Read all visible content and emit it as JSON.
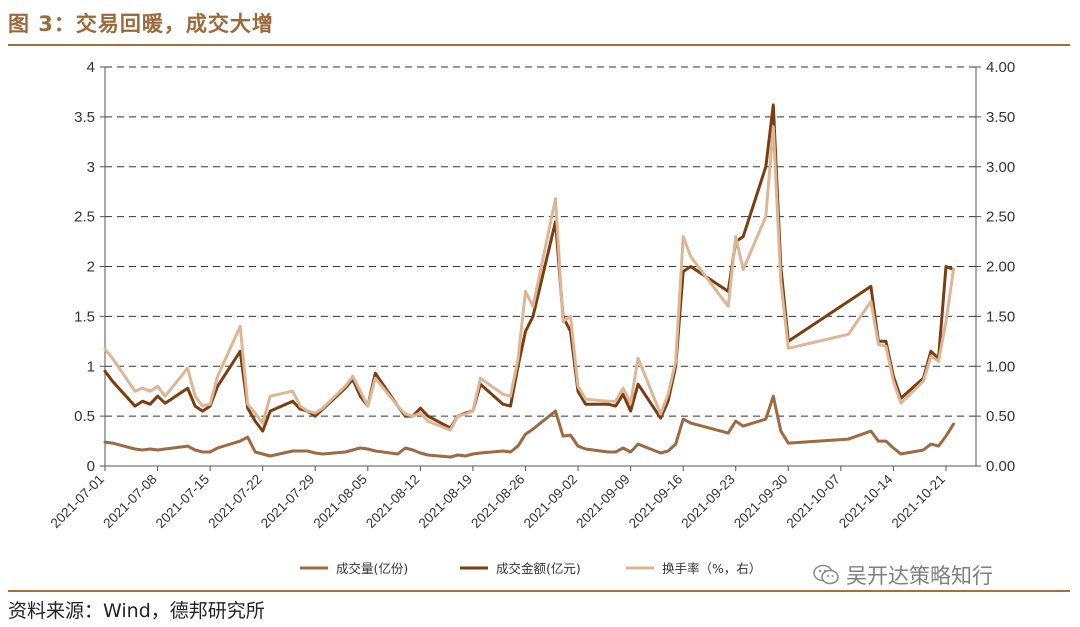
{
  "title": "图 3：交易回暖，成交大增",
  "source": "资料来源：Wind，德邦研究所",
  "watermark": "吴开达策略知行",
  "colors": {
    "frame": "#a0703f",
    "title": "#9a6a3c"
  },
  "chart_data": {
    "type": "line",
    "yleft": {
      "min": 0,
      "max": 4,
      "ticks": [
        "0",
        "0.5",
        "1",
        "1.5",
        "2",
        "2.5",
        "3",
        "3.5",
        "4"
      ]
    },
    "yright": {
      "min": 0,
      "max": 4,
      "ticks": [
        "0.00",
        "0.50",
        "1.00",
        "1.50",
        "2.00",
        "2.50",
        "3.00",
        "3.50",
        "4.00"
      ]
    },
    "grid": "horizontal dashed",
    "legend_position": "bottom",
    "x_tick_labels": [
      "2021-07-01",
      "2021-07-08",
      "2021-07-15",
      "2021-07-22",
      "2021-07-29",
      "2021-08-05",
      "2021-08-12",
      "2021-08-19",
      "2021-08-26",
      "2021-09-02",
      "2021-09-09",
      "2021-09-16",
      "2021-09-23",
      "2021-09-30",
      "2021-10-07",
      "2021-10-14",
      "2021-10-21"
    ],
    "x_range": [
      "2021-07-01",
      "2021-10-25"
    ],
    "series": [
      {
        "name": "成交量(亿份)",
        "color": "#9c6b43",
        "axis": "left",
        "points": [
          [
            "2021-07-01",
            0.24
          ],
          [
            "2021-07-02",
            0.23
          ],
          [
            "2021-07-05",
            0.17
          ],
          [
            "2021-07-06",
            0.16
          ],
          [
            "2021-07-07",
            0.17
          ],
          [
            "2021-07-08",
            0.16
          ],
          [
            "2021-07-09",
            0.17
          ],
          [
            "2021-07-12",
            0.2
          ],
          [
            "2021-07-13",
            0.16
          ],
          [
            "2021-07-14",
            0.14
          ],
          [
            "2021-07-15",
            0.14
          ],
          [
            "2021-07-16",
            0.18
          ],
          [
            "2021-07-19",
            0.25
          ],
          [
            "2021-07-20",
            0.29
          ],
          [
            "2021-07-21",
            0.14
          ],
          [
            "2021-07-22",
            0.12
          ],
          [
            "2021-07-23",
            0.1
          ],
          [
            "2021-07-26",
            0.15
          ],
          [
            "2021-07-27",
            0.15
          ],
          [
            "2021-07-28",
            0.15
          ],
          [
            "2021-07-29",
            0.13
          ],
          [
            "2021-07-30",
            0.12
          ],
          [
            "2021-08-02",
            0.14
          ],
          [
            "2021-08-03",
            0.16
          ],
          [
            "2021-08-04",
            0.18
          ],
          [
            "2021-08-05",
            0.17
          ],
          [
            "2021-08-06",
            0.15
          ],
          [
            "2021-08-09",
            0.12
          ],
          [
            "2021-08-10",
            0.18
          ],
          [
            "2021-08-11",
            0.16
          ],
          [
            "2021-08-12",
            0.13
          ],
          [
            "2021-08-13",
            0.11
          ],
          [
            "2021-08-16",
            0.09
          ],
          [
            "2021-08-17",
            0.11
          ],
          [
            "2021-08-18",
            0.1
          ],
          [
            "2021-08-19",
            0.12
          ],
          [
            "2021-08-20",
            0.13
          ],
          [
            "2021-08-23",
            0.15
          ],
          [
            "2021-08-24",
            0.14
          ],
          [
            "2021-08-25",
            0.2
          ],
          [
            "2021-08-26",
            0.32
          ],
          [
            "2021-08-27",
            0.37
          ],
          [
            "2021-08-30",
            0.55
          ],
          [
            "2021-08-31",
            0.3
          ],
          [
            "2021-09-01",
            0.31
          ],
          [
            "2021-09-02",
            0.2
          ],
          [
            "2021-09-03",
            0.17
          ],
          [
            "2021-09-06",
            0.14
          ],
          [
            "2021-09-07",
            0.14
          ],
          [
            "2021-09-08",
            0.18
          ],
          [
            "2021-09-09",
            0.14
          ],
          [
            "2021-09-10",
            0.22
          ],
          [
            "2021-09-13",
            0.13
          ],
          [
            "2021-09-14",
            0.15
          ],
          [
            "2021-09-15",
            0.22
          ],
          [
            "2021-09-16",
            0.47
          ],
          [
            "2021-09-17",
            0.43
          ],
          [
            "2021-09-22",
            0.33
          ],
          [
            "2021-09-23",
            0.45
          ],
          [
            "2021-09-24",
            0.4
          ],
          [
            "2021-09-27",
            0.47
          ],
          [
            "2021-09-28",
            0.7
          ],
          [
            "2021-09-29",
            0.35
          ],
          [
            "2021-09-30",
            0.23
          ],
          [
            "2021-10-08",
            0.27
          ],
          [
            "2021-10-11",
            0.35
          ],
          [
            "2021-10-12",
            0.25
          ],
          [
            "2021-10-13",
            0.25
          ],
          [
            "2021-10-14",
            0.18
          ],
          [
            "2021-10-15",
            0.12
          ],
          [
            "2021-10-18",
            0.16
          ],
          [
            "2021-10-19",
            0.22
          ],
          [
            "2021-10-20",
            0.2
          ],
          [
            "2021-10-21",
            0.3
          ],
          [
            "2021-10-22",
            0.42
          ]
        ]
      },
      {
        "name": "成交金额(亿元)",
        "color": "#7a3e12",
        "axis": "left",
        "points": [
          [
            "2021-07-01",
            0.95
          ],
          [
            "2021-07-02",
            0.85
          ],
          [
            "2021-07-05",
            0.6
          ],
          [
            "2021-07-06",
            0.65
          ],
          [
            "2021-07-07",
            0.62
          ],
          [
            "2021-07-08",
            0.7
          ],
          [
            "2021-07-09",
            0.63
          ],
          [
            "2021-07-12",
            0.78
          ],
          [
            "2021-07-13",
            0.6
          ],
          [
            "2021-07-14",
            0.55
          ],
          [
            "2021-07-15",
            0.6
          ],
          [
            "2021-07-16",
            0.8
          ],
          [
            "2021-07-19",
            1.15
          ],
          [
            "2021-07-20",
            0.58
          ],
          [
            "2021-07-21",
            0.45
          ],
          [
            "2021-07-22",
            0.35
          ],
          [
            "2021-07-23",
            0.55
          ],
          [
            "2021-07-26",
            0.65
          ],
          [
            "2021-07-27",
            0.57
          ],
          [
            "2021-07-28",
            0.55
          ],
          [
            "2021-07-29",
            0.5
          ],
          [
            "2021-07-30",
            0.57
          ],
          [
            "2021-08-02",
            0.78
          ],
          [
            "2021-08-03",
            0.87
          ],
          [
            "2021-08-04",
            0.7
          ],
          [
            "2021-08-05",
            0.6
          ],
          [
            "2021-08-06",
            0.93
          ],
          [
            "2021-08-09",
            0.6
          ],
          [
            "2021-08-10",
            0.5
          ],
          [
            "2021-08-11",
            0.5
          ],
          [
            "2021-08-12",
            0.58
          ],
          [
            "2021-08-13",
            0.5
          ],
          [
            "2021-08-16",
            0.38
          ],
          [
            "2021-08-17",
            0.5
          ],
          [
            "2021-08-18",
            0.53
          ],
          [
            "2021-08-19",
            0.55
          ],
          [
            "2021-08-20",
            0.82
          ],
          [
            "2021-08-23",
            0.62
          ],
          [
            "2021-08-24",
            0.6
          ],
          [
            "2021-08-25",
            1.0
          ],
          [
            "2021-08-26",
            1.35
          ],
          [
            "2021-08-27",
            1.5
          ],
          [
            "2021-08-30",
            2.45
          ],
          [
            "2021-08-31",
            1.5
          ],
          [
            "2021-09-01",
            1.35
          ],
          [
            "2021-09-02",
            0.75
          ],
          [
            "2021-09-03",
            0.62
          ],
          [
            "2021-09-06",
            0.62
          ],
          [
            "2021-09-07",
            0.6
          ],
          [
            "2021-09-08",
            0.72
          ],
          [
            "2021-09-09",
            0.55
          ],
          [
            "2021-09-10",
            0.82
          ],
          [
            "2021-09-13",
            0.48
          ],
          [
            "2021-09-14",
            0.65
          ],
          [
            "2021-09-15",
            1.0
          ],
          [
            "2021-09-16",
            1.95
          ],
          [
            "2021-09-17",
            2.0
          ],
          [
            "2021-09-22",
            1.75
          ],
          [
            "2021-09-23",
            2.25
          ],
          [
            "2021-09-24",
            2.3
          ],
          [
            "2021-09-27",
            3.0
          ],
          [
            "2021-09-28",
            3.62
          ],
          [
            "2021-09-29",
            2.0
          ],
          [
            "2021-09-30",
            1.25
          ],
          [
            "2021-10-08",
            1.65
          ],
          [
            "2021-10-11",
            1.8
          ],
          [
            "2021-10-12",
            1.25
          ],
          [
            "2021-10-13",
            1.25
          ],
          [
            "2021-10-14",
            0.9
          ],
          [
            "2021-10-15",
            0.68
          ],
          [
            "2021-10-18",
            0.88
          ],
          [
            "2021-10-19",
            1.15
          ],
          [
            "2021-10-20",
            1.08
          ],
          [
            "2021-10-21",
            2.0
          ],
          [
            "2021-10-22",
            1.97
          ]
        ]
      },
      {
        "name": "换手率（%，右）",
        "color": "#ddb696",
        "axis": "right",
        "points": [
          [
            "2021-07-01",
            1.17
          ],
          [
            "2021-07-02",
            1.08
          ],
          [
            "2021-07-05",
            0.75
          ],
          [
            "2021-07-06",
            0.78
          ],
          [
            "2021-07-07",
            0.75
          ],
          [
            "2021-07-08",
            0.8
          ],
          [
            "2021-07-09",
            0.7
          ],
          [
            "2021-07-12",
            0.98
          ],
          [
            "2021-07-13",
            0.7
          ],
          [
            "2021-07-14",
            0.6
          ],
          [
            "2021-07-15",
            0.62
          ],
          [
            "2021-07-16",
            0.9
          ],
          [
            "2021-07-19",
            1.4
          ],
          [
            "2021-07-20",
            0.62
          ],
          [
            "2021-07-21",
            0.53
          ],
          [
            "2021-07-22",
            0.43
          ],
          [
            "2021-07-23",
            0.7
          ],
          [
            "2021-07-26",
            0.75
          ],
          [
            "2021-07-27",
            0.6
          ],
          [
            "2021-07-28",
            0.55
          ],
          [
            "2021-07-29",
            0.53
          ],
          [
            "2021-07-30",
            0.58
          ],
          [
            "2021-08-02",
            0.8
          ],
          [
            "2021-08-03",
            0.9
          ],
          [
            "2021-08-04",
            0.75
          ],
          [
            "2021-08-05",
            0.6
          ],
          [
            "2021-08-06",
            0.88
          ],
          [
            "2021-08-09",
            0.6
          ],
          [
            "2021-08-10",
            0.52
          ],
          [
            "2021-08-11",
            0.5
          ],
          [
            "2021-08-12",
            0.53
          ],
          [
            "2021-08-13",
            0.45
          ],
          [
            "2021-08-16",
            0.36
          ],
          [
            "2021-08-17",
            0.5
          ],
          [
            "2021-08-18",
            0.52
          ],
          [
            "2021-08-19",
            0.55
          ],
          [
            "2021-08-20",
            0.88
          ],
          [
            "2021-08-23",
            0.72
          ],
          [
            "2021-08-24",
            0.7
          ],
          [
            "2021-08-25",
            1.07
          ],
          [
            "2021-08-26",
            1.75
          ],
          [
            "2021-08-27",
            1.6
          ],
          [
            "2021-08-30",
            2.68
          ],
          [
            "2021-08-31",
            1.45
          ],
          [
            "2021-09-01",
            1.5
          ],
          [
            "2021-09-02",
            0.8
          ],
          [
            "2021-09-03",
            0.67
          ],
          [
            "2021-09-06",
            0.65
          ],
          [
            "2021-09-07",
            0.65
          ],
          [
            "2021-09-08",
            0.78
          ],
          [
            "2021-09-09",
            0.63
          ],
          [
            "2021-09-10",
            1.08
          ],
          [
            "2021-09-13",
            0.52
          ],
          [
            "2021-09-14",
            0.72
          ],
          [
            "2021-09-15",
            1.05
          ],
          [
            "2021-09-16",
            2.3
          ],
          [
            "2021-09-17",
            2.1
          ],
          [
            "2021-09-22",
            1.6
          ],
          [
            "2021-09-23",
            2.3
          ],
          [
            "2021-09-24",
            1.97
          ],
          [
            "2021-09-27",
            2.5
          ],
          [
            "2021-09-28",
            3.4
          ],
          [
            "2021-09-29",
            1.85
          ],
          [
            "2021-09-30",
            1.18
          ],
          [
            "2021-10-08",
            1.32
          ],
          [
            "2021-10-11",
            1.65
          ],
          [
            "2021-10-12",
            1.22
          ],
          [
            "2021-10-13",
            1.2
          ],
          [
            "2021-10-14",
            0.85
          ],
          [
            "2021-10-15",
            0.63
          ],
          [
            "2021-10-18",
            0.85
          ],
          [
            "2021-10-19",
            1.1
          ],
          [
            "2021-10-20",
            1.05
          ],
          [
            "2021-10-21",
            1.45
          ],
          [
            "2021-10-22",
            1.97
          ]
        ]
      }
    ]
  }
}
